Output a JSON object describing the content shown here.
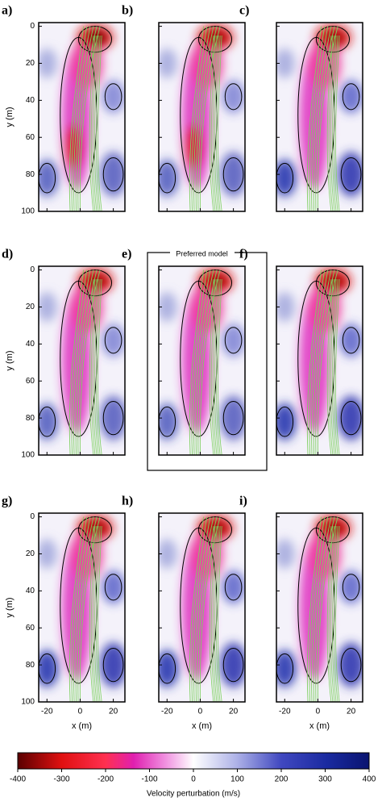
{
  "panels": [
    {
      "label": "a)"
    },
    {
      "label": "b)"
    },
    {
      "label": "c)"
    },
    {
      "label": "d)"
    },
    {
      "label": "e)",
      "note": "Preferred model"
    },
    {
      "label": "f)"
    },
    {
      "label": "g)"
    },
    {
      "label": "h)"
    },
    {
      "label": "i)"
    }
  ],
  "axes": {
    "xlabel": "x (m)",
    "ylabel": "y (m)",
    "xlim": [
      -25,
      27
    ],
    "ylim": [
      -2,
      100
    ],
    "xticks": [
      -20,
      0,
      20
    ],
    "yticks": [
      0,
      20,
      40,
      60,
      80,
      100
    ]
  },
  "colorbar": {
    "label": "Velocity perturbation (m/s)",
    "lim": [
      -400,
      400
    ],
    "ticks": [
      -400,
      -300,
      -200,
      -100,
      0,
      100,
      200,
      300,
      400
    ]
  }
}
